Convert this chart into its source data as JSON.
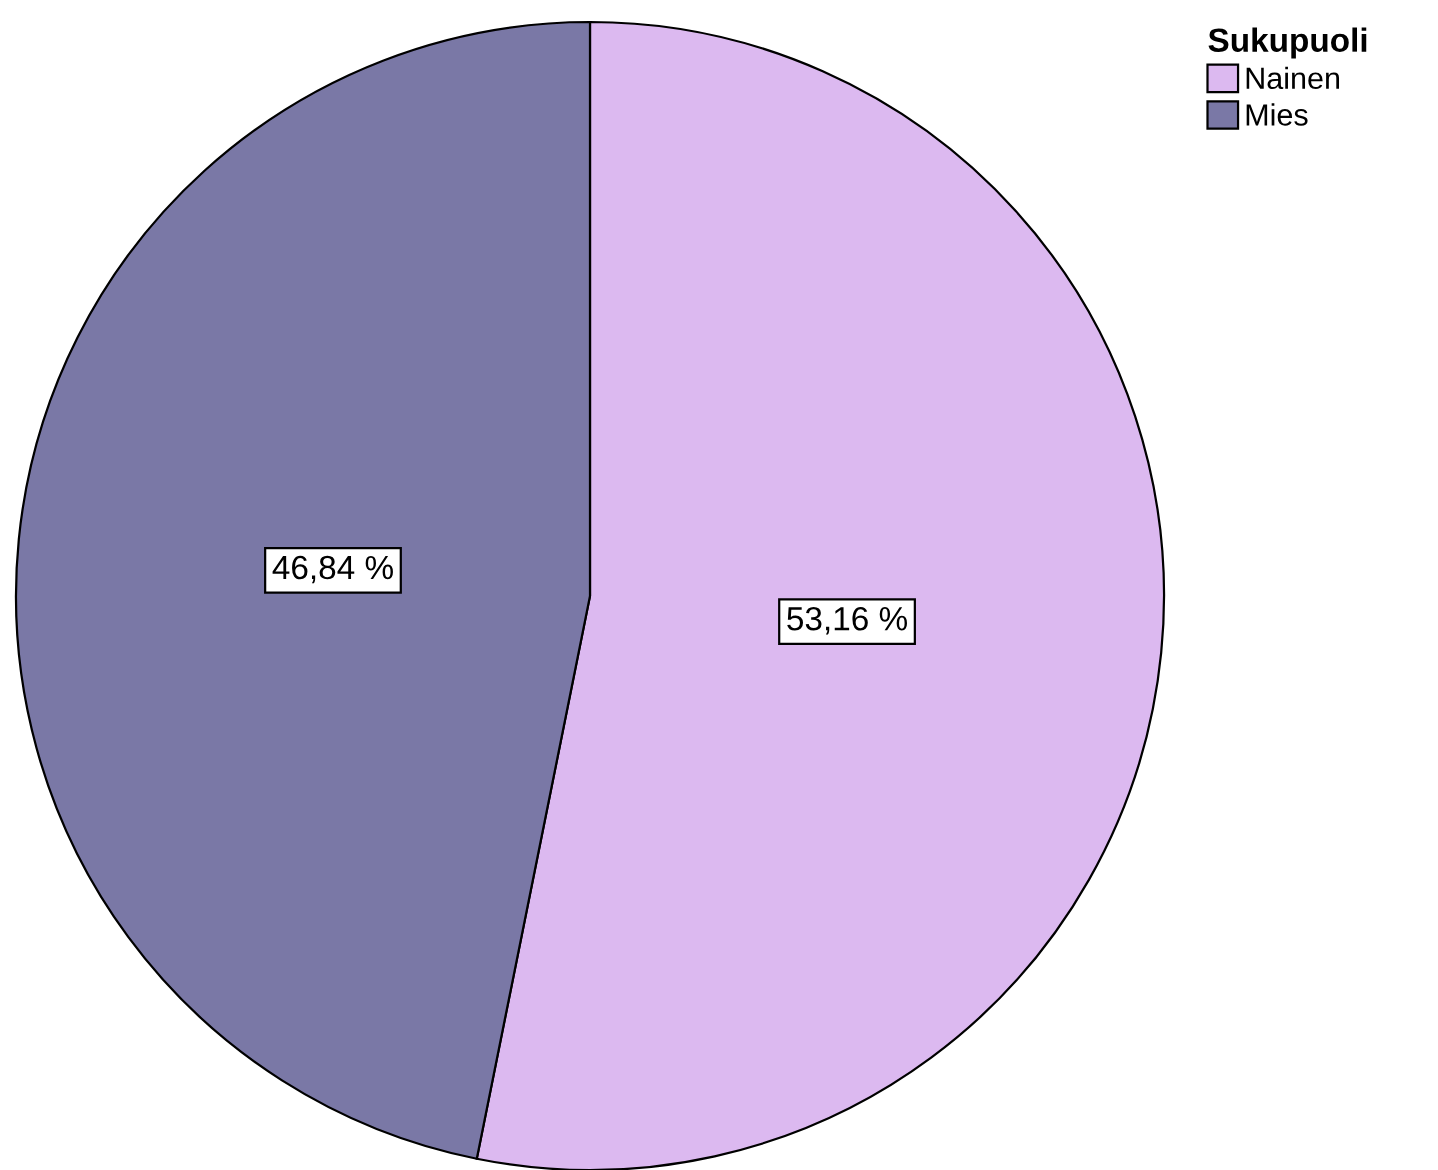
{
  "chart_data": {
    "type": "pie",
    "legend_title": "Sukupuoli",
    "legend": "top right",
    "categories": [
      "Nainen",
      "Mies"
    ],
    "values": [
      53.16,
      46.84
    ],
    "colors": [
      "#dcb9f0",
      "#7a78a6"
    ],
    "value_labels": [
      "53,16 %",
      "46,84 %"
    ]
  }
}
